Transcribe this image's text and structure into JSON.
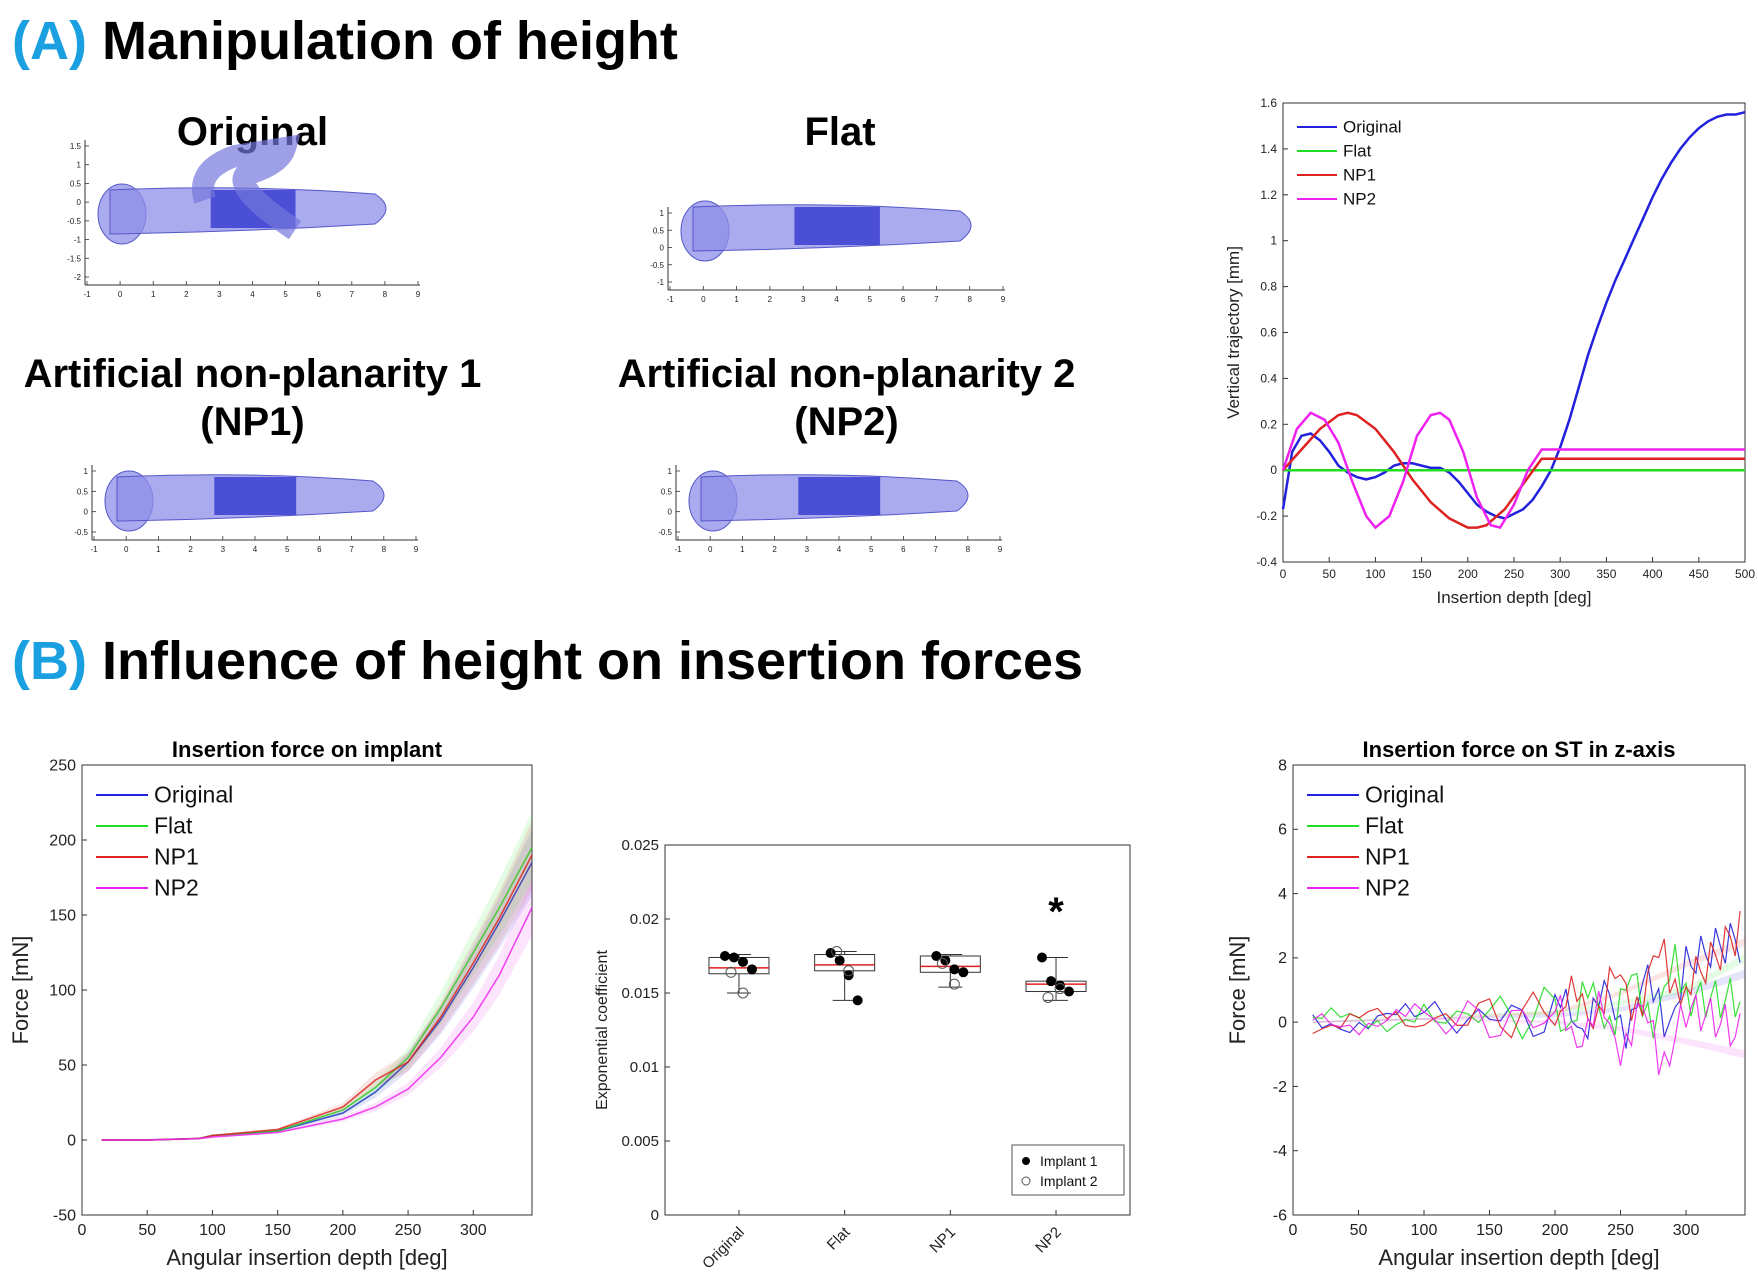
{
  "sectionA": {
    "tag": "(A)",
    "title": "Manipulation of height"
  },
  "sectionB": {
    "tag": "(B)",
    "title": "Influence of height on insertion forces"
  },
  "implant_panels": [
    {
      "title": "Original",
      "yticks": [
        "1.5",
        "1",
        "0.5",
        "0",
        "-0.5",
        "-1",
        "-1.5",
        "-2"
      ],
      "xticks": [
        "-1",
        "0",
        "1",
        "2",
        "3",
        "4",
        "5",
        "6",
        "7",
        "8",
        "9"
      ]
    },
    {
      "title": "Flat",
      "yticks": [
        "1",
        "0.5",
        "0",
        "-0.5",
        "-1"
      ],
      "xticks": [
        "-1",
        "0",
        "1",
        "2",
        "3",
        "4",
        "5",
        "6",
        "7",
        "8",
        "9"
      ]
    },
    {
      "title": "Artificial non-planarity 1",
      "subtitle": "(NP1)",
      "yticks": [
        "1",
        "0.5",
        "0",
        "-0.5"
      ],
      "xticks": [
        "-1",
        "0",
        "1",
        "2",
        "3",
        "4",
        "5",
        "6",
        "7",
        "8",
        "9"
      ]
    },
    {
      "title": "Artificial non-planarity 2",
      "subtitle": "(NP2)",
      "yticks": [
        "1",
        "0.5",
        "0",
        "-0.5"
      ],
      "xticks": [
        "-1",
        "0",
        "1",
        "2",
        "3",
        "4",
        "5",
        "6",
        "7",
        "8",
        "9"
      ]
    }
  ],
  "colors": {
    "Original": "#2222dd",
    "Flat": "#22dd22",
    "NP1": "#dd2222",
    "NP2": "#ee22ee"
  },
  "chart_data": [
    {
      "id": "vertical",
      "type": "line",
      "title": "",
      "xlabel": "Insertion depth [deg]",
      "ylabel": "Vertical trajectory [mm]",
      "xlim": [
        0,
        500
      ],
      "ylim": [
        -0.4,
        1.6
      ],
      "xticks": [
        0,
        50,
        100,
        150,
        200,
        250,
        300,
        350,
        400,
        450,
        500
      ],
      "yticks": [
        -0.4,
        -0.2,
        0,
        0.2,
        0.4,
        0.6,
        0.8,
        1,
        1.2,
        1.4,
        1.6
      ],
      "legend": "top-left",
      "series": [
        {
          "name": "Original",
          "x": [
            0,
            10,
            20,
            30,
            40,
            50,
            60,
            70,
            80,
            90,
            100,
            110,
            120,
            130,
            140,
            150,
            160,
            170,
            180,
            190,
            200,
            210,
            220,
            230,
            240,
            250,
            260,
            270,
            280,
            290,
            300,
            310,
            320,
            330,
            340,
            350,
            360,
            370,
            380,
            390,
            400,
            410,
            420,
            430,
            440,
            450,
            460,
            470,
            480,
            490,
            500
          ],
          "y": [
            -0.17,
            0.08,
            0.15,
            0.16,
            0.13,
            0.08,
            0.02,
            -0.01,
            -0.03,
            -0.04,
            -0.03,
            -0.01,
            0.02,
            0.03,
            0.03,
            0.02,
            0.01,
            0.01,
            -0.01,
            -0.05,
            -0.1,
            -0.15,
            -0.18,
            -0.2,
            -0.21,
            -0.19,
            -0.17,
            -0.13,
            -0.07,
            0.0,
            0.1,
            0.22,
            0.36,
            0.5,
            0.62,
            0.73,
            0.83,
            0.92,
            1.01,
            1.1,
            1.19,
            1.27,
            1.34,
            1.4,
            1.45,
            1.49,
            1.52,
            1.54,
            1.55,
            1.55,
            1.56
          ]
        },
        {
          "name": "Flat",
          "x": [
            0,
            500
          ],
          "y": [
            0,
            0
          ]
        },
        {
          "name": "NP1",
          "x": [
            0,
            20,
            40,
            60,
            70,
            80,
            100,
            120,
            140,
            160,
            180,
            200,
            210,
            220,
            240,
            260,
            280,
            500
          ],
          "y": [
            0,
            0.09,
            0.18,
            0.24,
            0.25,
            0.24,
            0.18,
            0.08,
            -0.04,
            -0.14,
            -0.21,
            -0.25,
            -0.25,
            -0.24,
            -0.17,
            -0.06,
            0.05,
            0.05
          ]
        },
        {
          "name": "NP2",
          "x": [
            0,
            15,
            30,
            45,
            60,
            75,
            90,
            100,
            115,
            130,
            145,
            160,
            170,
            180,
            195,
            210,
            225,
            235,
            250,
            265,
            280,
            500
          ],
          "y": [
            0,
            0.18,
            0.25,
            0.22,
            0.12,
            -0.05,
            -0.2,
            -0.25,
            -0.2,
            -0.05,
            0.15,
            0.24,
            0.25,
            0.22,
            0.08,
            -0.12,
            -0.24,
            -0.25,
            -0.15,
            0.0,
            0.09,
            0.09
          ]
        }
      ]
    },
    {
      "id": "force-implant",
      "type": "line",
      "title": "Insertion force on implant",
      "xlabel": "Angular insertion depth [deg]",
      "ylabel": "Force [mN]",
      "xlim": [
        0,
        345
      ],
      "ylim": [
        -50,
        250
      ],
      "xticks": [
        0,
        50,
        100,
        150,
        200,
        250,
        300
      ],
      "yticks": [
        -50,
        0,
        50,
        100,
        150,
        200,
        250
      ],
      "legend": "top-left",
      "series": [
        {
          "name": "Original",
          "x": [
            15,
            50,
            90,
            100,
            150,
            200,
            225,
            250,
            275,
            300,
            320,
            345
          ],
          "y": [
            0,
            0,
            1,
            3,
            6,
            18,
            32,
            52,
            80,
            115,
            145,
            185
          ]
        },
        {
          "name": "Flat",
          "x": [
            15,
            50,
            90,
            100,
            150,
            200,
            225,
            250,
            275,
            300,
            320,
            345
          ],
          "y": [
            0,
            0,
            1,
            3,
            6,
            20,
            35,
            55,
            88,
            125,
            155,
            195
          ]
        },
        {
          "name": "NP1",
          "x": [
            15,
            50,
            90,
            100,
            150,
            200,
            225,
            250,
            275,
            300,
            320,
            345
          ],
          "y": [
            0,
            0,
            1,
            3,
            7,
            22,
            40,
            52,
            82,
            118,
            148,
            190
          ]
        },
        {
          "name": "NP2",
          "x": [
            15,
            50,
            90,
            100,
            150,
            200,
            225,
            250,
            275,
            300,
            320,
            345
          ],
          "y": [
            0,
            0,
            1,
            2,
            5,
            14,
            22,
            34,
            55,
            82,
            110,
            155
          ]
        }
      ]
    },
    {
      "id": "exp-coef",
      "type": "box",
      "xlabel": "",
      "ylabel": "Exponential coefficient",
      "ylim": [
        0,
        0.025
      ],
      "yticks": [
        "0",
        "0.005",
        "0.01",
        "0.015",
        "0.02",
        "0.025"
      ],
      "categories": [
        "Original",
        "Flat",
        "NP1",
        "NP2"
      ],
      "boxes": [
        {
          "q1": 0.0163,
          "median": 0.0167,
          "q3": 0.0174,
          "wlow": 0.015,
          "whigh": 0.0176
        },
        {
          "q1": 0.0165,
          "median": 0.0169,
          "q3": 0.0176,
          "wlow": 0.0145,
          "whigh": 0.0178
        },
        {
          "q1": 0.0164,
          "median": 0.0168,
          "q3": 0.0175,
          "wlow": 0.0154,
          "whigh": 0.0176
        },
        {
          "q1": 0.0151,
          "median": 0.0156,
          "q3": 0.0158,
          "wlow": 0.0145,
          "whigh": 0.0174
        }
      ],
      "implant1": [
        [
          0.0175,
          0.0174,
          0.0171,
          0.0166
        ],
        [
          0.0177,
          0.0172,
          0.0162,
          0.0145
        ],
        [
          0.0175,
          0.0172,
          0.0166,
          0.0164
        ],
        [
          0.0174,
          0.0158,
          0.0155,
          0.0151
        ]
      ],
      "implant2": [
        [
          0.0164,
          0.015
        ],
        [
          0.0178,
          0.0165
        ],
        [
          0.017,
          0.0156
        ],
        [
          0.0147,
          0.0153
        ]
      ],
      "significance_mark": "*",
      "legend": {
        "implant1": "Implant 1",
        "implant2": "Implant 2",
        "placement": "bottom-right"
      }
    },
    {
      "id": "force-st",
      "type": "line",
      "title": "Insertion force on ST in z-axis",
      "xlabel": "Angular insertion depth [deg]",
      "ylabel": "Force [mN]",
      "xlim": [
        0,
        345
      ],
      "ylim": [
        -6,
        8
      ],
      "xticks": [
        0,
        50,
        100,
        150,
        200,
        250,
        300
      ],
      "yticks": [
        -6,
        -4,
        -2,
        0,
        2,
        4,
        6,
        8
      ],
      "legend": "top-left",
      "series": [
        {
          "name": "Original",
          "x": [
            15,
            100,
            200,
            250,
            300,
            345
          ],
          "y": [
            0,
            0.1,
            0.2,
            0.4,
            0.9,
            1.5
          ]
        },
        {
          "name": "Flat",
          "x": [
            15,
            100,
            200,
            250,
            300,
            345
          ],
          "y": [
            0,
            0.2,
            0.3,
            0.6,
            1.0,
            2.0
          ]
        },
        {
          "name": "NP1",
          "x": [
            15,
            100,
            200,
            250,
            300,
            345
          ],
          "y": [
            0,
            0.1,
            0.3,
            0.9,
            1.8,
            2.5
          ]
        },
        {
          "name": "NP2",
          "x": [
            15,
            100,
            200,
            250,
            300,
            345
          ],
          "y": [
            0,
            0.1,
            0.0,
            -0.2,
            -0.6,
            -1.0
          ]
        }
      ]
    }
  ]
}
